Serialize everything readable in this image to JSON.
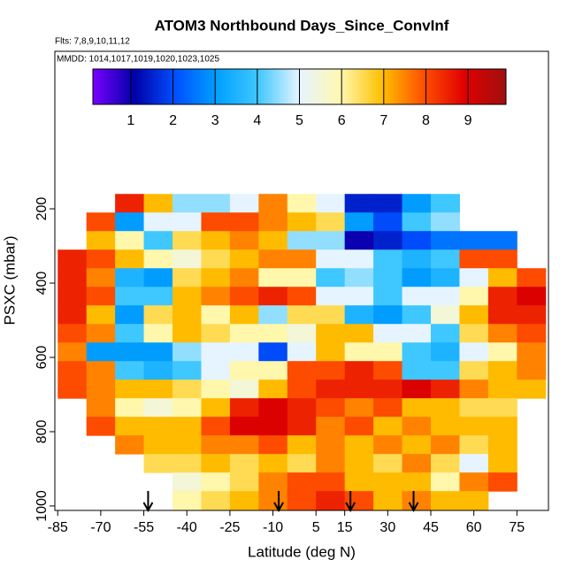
{
  "chart_data": {
    "type": "heatmap",
    "title": "ATOM3 Northbound Days_Since_ConvInf",
    "subtitle": "Flts: 7,8,9,10,11,12",
    "annotation": "MMDD: 1014,1017,1019,1020,1023,1025",
    "x_label": "Latitude (deg N)",
    "y_label": "PSXC (mbar)",
    "xlim": [
      -86,
      86
    ],
    "xticks": [
      -85,
      -70,
      -55,
      -40,
      -25,
      -10,
      5,
      15,
      30,
      45,
      60,
      75
    ],
    "ylim": [
      1012,
      -224
    ],
    "yticks": [
      200,
      400,
      600,
      800,
      1000
    ],
    "clim": [
      0.1,
      9.9
    ],
    "cticks": [
      1,
      2,
      3,
      4,
      5,
      6,
      7,
      8,
      9
    ],
    "colormap": [
      "#7a00ff",
      "#0000a8",
      "#0050ff",
      "#00a0ff",
      "#40c8ff",
      "#e6f4ff",
      "#fff8b0",
      "#ffc000",
      "#ff5000",
      "#e00000",
      "#a01010"
    ],
    "arrows_lat": [
      -53.5,
      -8,
      17,
      39
    ],
    "lat_edges": [
      -85,
      -75,
      -65,
      -55,
      -45,
      -35,
      -25,
      -15,
      -5,
      5,
      15,
      25,
      35,
      45,
      55,
      65,
      75,
      85
    ],
    "pressure_levels": [
      185,
      235,
      285,
      335,
      385,
      435,
      485,
      535,
      585,
      635,
      685,
      735,
      785,
      835,
      885,
      935,
      985
    ],
    "z": [
      [
        null,
        null,
        8.5,
        7,
        4.5,
        4.5,
        5,
        7.5,
        6,
        5,
        1.5,
        1.5,
        3,
        4,
        null,
        null,
        null
      ],
      [
        null,
        8,
        3,
        5,
        5,
        8,
        8,
        7.5,
        7,
        6.5,
        3,
        2,
        4,
        4.5,
        null,
        null,
        null
      ],
      [
        null,
        7,
        6,
        4,
        6.5,
        7,
        7.5,
        7,
        4.5,
        4.5,
        1,
        1.5,
        2,
        2.5,
        2.5,
        2.5,
        null
      ],
      [
        8.5,
        8,
        7,
        6,
        5.5,
        6.5,
        7,
        7.5,
        7.5,
        5,
        5,
        4,
        3.5,
        4,
        8,
        8,
        null
      ],
      [
        8.5,
        7.5,
        3.5,
        3,
        6.5,
        7,
        7.5,
        6,
        6,
        4,
        4.5,
        4,
        3,
        3.5,
        5,
        7,
        8
      ],
      [
        8.5,
        8,
        4,
        4,
        7,
        7.5,
        8,
        8.5,
        8,
        5,
        5,
        4,
        5,
        5,
        6,
        8.5,
        9
      ],
      [
        8.5,
        7,
        3,
        6.5,
        7,
        6,
        7,
        4.5,
        6.5,
        6.5,
        3.5,
        3,
        4,
        5.5,
        7,
        8.5,
        8.5
      ],
      [
        8,
        7.5,
        4,
        6,
        7,
        6.5,
        6,
        6,
        5.5,
        7,
        7,
        5,
        5,
        4,
        6.5,
        7.5,
        8
      ],
      [
        7.5,
        3,
        3,
        3,
        4.5,
        5,
        5,
        2,
        5,
        7,
        6,
        6,
        4,
        3.5,
        5,
        6,
        7.5
      ],
      [
        8,
        7.5,
        4,
        3.5,
        4,
        5,
        6,
        6,
        8,
        8,
        8.5,
        8,
        4,
        4,
        6.5,
        7,
        7.5
      ],
      [
        8,
        7.5,
        7,
        7,
        6.5,
        6,
        5.5,
        7,
        8,
        8.5,
        8.5,
        8.5,
        9,
        8.5,
        7.5,
        7,
        7
      ],
      [
        null,
        7.5,
        6,
        5.5,
        6,
        7,
        8.5,
        9,
        8.5,
        8,
        7.5,
        8,
        7,
        7,
        6.5,
        6.5,
        null
      ],
      [
        null,
        8,
        7,
        7,
        7,
        8,
        9,
        9,
        8.5,
        7.5,
        8,
        7,
        7.5,
        7,
        7,
        7,
        null
      ],
      [
        null,
        null,
        7.5,
        7,
        7,
        7.5,
        7.5,
        8,
        7,
        7.5,
        7,
        7.5,
        7,
        7.5,
        6.5,
        7,
        null
      ],
      [
        null,
        null,
        null,
        6.5,
        6.5,
        7,
        6.5,
        7,
        6.5,
        7.5,
        7,
        6.5,
        7.5,
        6.5,
        5,
        7,
        null
      ],
      [
        null,
        null,
        null,
        null,
        5.5,
        6,
        6.5,
        7.5,
        8,
        8,
        7,
        7,
        7,
        6,
        7.5,
        8,
        null
      ],
      [
        null,
        null,
        null,
        null,
        6,
        6.5,
        7,
        7.5,
        8,
        8.5,
        8,
        7,
        7.5,
        7,
        7,
        null,
        null
      ]
    ]
  }
}
